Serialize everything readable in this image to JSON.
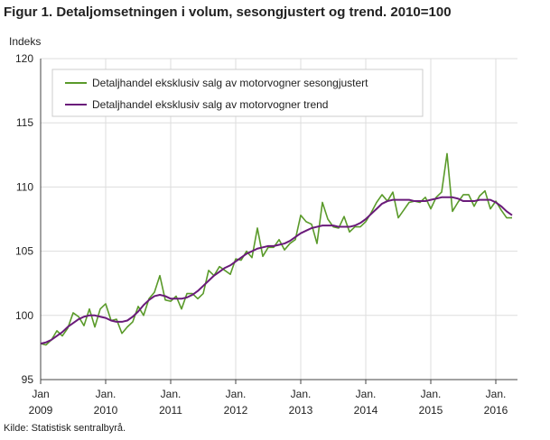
{
  "chart_title": "Figur 1. Detaljomsetningen i volum, sesongjustert og trend. 2010=100",
  "source": "Kilde: Statistisk sentralbyrå.",
  "colors": {
    "seasonal": "#5a9a2a",
    "trend": "#6a1b7a",
    "grid": "#dddddd",
    "axis": "#444444"
  },
  "chart_data": {
    "type": "line",
    "ylabel": "Indeks",
    "ylim": [
      95,
      120
    ],
    "yticks": [
      95,
      100,
      105,
      110,
      115,
      120
    ],
    "xlabels": [
      {
        "line1": "Jan",
        "line2": "2009",
        "month": 0
      },
      {
        "line1": "Jan.",
        "line2": "2010",
        "month": 12
      },
      {
        "line1": "Jan.",
        "line2": "2011",
        "month": 24
      },
      {
        "line1": "Jan.",
        "line2": "2012",
        "month": 36
      },
      {
        "line1": "Jan.",
        "line2": "2013",
        "month": 48
      },
      {
        "line1": "Jan.",
        "line2": "2014",
        "month": 60
      },
      {
        "line1": "Jan.",
        "line2": "2015",
        "month": 72
      },
      {
        "line1": "Jan.",
        "line2": "2016",
        "month": 84
      }
    ],
    "xlim": [
      0,
      88
    ],
    "grid": true,
    "legend_position": "top-left",
    "series": [
      {
        "name": "Detaljhandel eksklusiv salg av motorvogner sesongjustert",
        "values": [
          97.8,
          97.7,
          98.1,
          98.8,
          98.4,
          99.0,
          100.2,
          99.9,
          99.2,
          100.5,
          99.1,
          100.5,
          100.9,
          99.6,
          99.7,
          98.6,
          99.1,
          99.5,
          100.7,
          100.0,
          101.3,
          101.8,
          103.1,
          101.2,
          101.1,
          101.5,
          100.5,
          101.7,
          101.7,
          101.3,
          101.7,
          103.5,
          103.1,
          103.8,
          103.5,
          103.2,
          104.4,
          104.3,
          105.0,
          104.5,
          106.8,
          104.6,
          105.3,
          105.3,
          105.9,
          105.1,
          105.6,
          105.9,
          107.8,
          107.3,
          107.1,
          105.6,
          108.8,
          107.5,
          106.9,
          106.8,
          107.7,
          106.5,
          106.9,
          106.9,
          107.3,
          108.0,
          108.8,
          109.4,
          108.9,
          109.6,
          107.6,
          108.2,
          108.8,
          108.9,
          108.8,
          109.2,
          108.3,
          109.2,
          109.6,
          112.6,
          108.1,
          108.8,
          109.4,
          109.4,
          108.5,
          109.3,
          109.7,
          108.3,
          108.9,
          108.2,
          107.6,
          107.6
        ],
        "color": "#5a9a2a"
      },
      {
        "name": "Detaljhandel eksklusiv salg av motorvogner trend",
        "values": [
          97.8,
          97.9,
          98.1,
          98.4,
          98.7,
          99.1,
          99.4,
          99.7,
          99.9,
          100.0,
          100.0,
          99.9,
          99.8,
          99.6,
          99.5,
          99.5,
          99.6,
          99.9,
          100.3,
          100.8,
          101.2,
          101.5,
          101.6,
          101.5,
          101.3,
          101.3,
          101.3,
          101.4,
          101.6,
          101.9,
          102.3,
          102.7,
          103.1,
          103.4,
          103.7,
          103.9,
          104.2,
          104.5,
          104.8,
          105.0,
          105.2,
          105.3,
          105.4,
          105.4,
          105.5,
          105.6,
          105.8,
          106.1,
          106.4,
          106.6,
          106.8,
          106.9,
          107.0,
          107.0,
          107.0,
          106.9,
          106.9,
          106.9,
          107.0,
          107.2,
          107.5,
          107.9,
          108.3,
          108.7,
          108.9,
          109.0,
          109.0,
          109.0,
          109.0,
          108.9,
          108.9,
          108.9,
          109.0,
          109.1,
          109.2,
          109.2,
          109.2,
          109.1,
          108.9,
          108.9,
          108.9,
          109.0,
          109.0,
          109.0,
          108.8,
          108.5,
          108.1,
          107.8
        ],
        "color": "#6a1b7a"
      }
    ]
  }
}
